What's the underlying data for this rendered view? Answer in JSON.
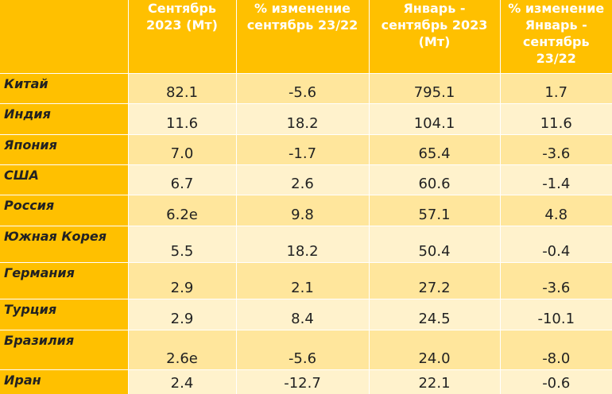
{
  "chart_data": {
    "type": "table",
    "columns": [
      "",
      "Сентябрь 2023 (Мт)",
      "% изменение сентябрь 23/22",
      "Январь - сентябрь 2023 (Мт)",
      "% изменение Январь - сентябрь 23/22"
    ],
    "rows": [
      {
        "country": "Китай",
        "values": [
          "82.1",
          "-5.6",
          "795.1",
          "1.7"
        ]
      },
      {
        "country": "Индия",
        "values": [
          "11.6",
          "18.2",
          "104.1",
          "11.6"
        ]
      },
      {
        "country": "Япония",
        "values": [
          "7.0",
          "-1.7",
          "65.4",
          "-3.6"
        ]
      },
      {
        "country": "США",
        "values": [
          "6.7",
          "2.6",
          "60.6",
          "-1.4"
        ]
      },
      {
        "country": "Россия",
        "values": [
          "6.2e",
          "9.8",
          "57.1",
          "4.8"
        ]
      },
      {
        "country": "Южная Корея",
        "values": [
          "5.5",
          "18.2",
          "50.4",
          "-0.4"
        ]
      },
      {
        "country": "Германия",
        "values": [
          "2.9",
          "2.1",
          "27.2",
          "-3.6"
        ]
      },
      {
        "country": "Турция",
        "values": [
          "2.9",
          "8.4",
          "24.5",
          "-10.1"
        ]
      },
      {
        "country": "Бразилия",
        "values": [
          "2.6e",
          "-5.6",
          "24.0",
          "-8.0"
        ]
      },
      {
        "country": "Иран",
        "values": [
          "2.4",
          "-12.7",
          "22.1",
          "-0.6"
        ]
      }
    ]
  },
  "colors": {
    "header_bg": "#ffc000",
    "header_text": "#ffffff",
    "row_odd_bg": "#ffe69c",
    "row_even_bg": "#fff2cc"
  }
}
